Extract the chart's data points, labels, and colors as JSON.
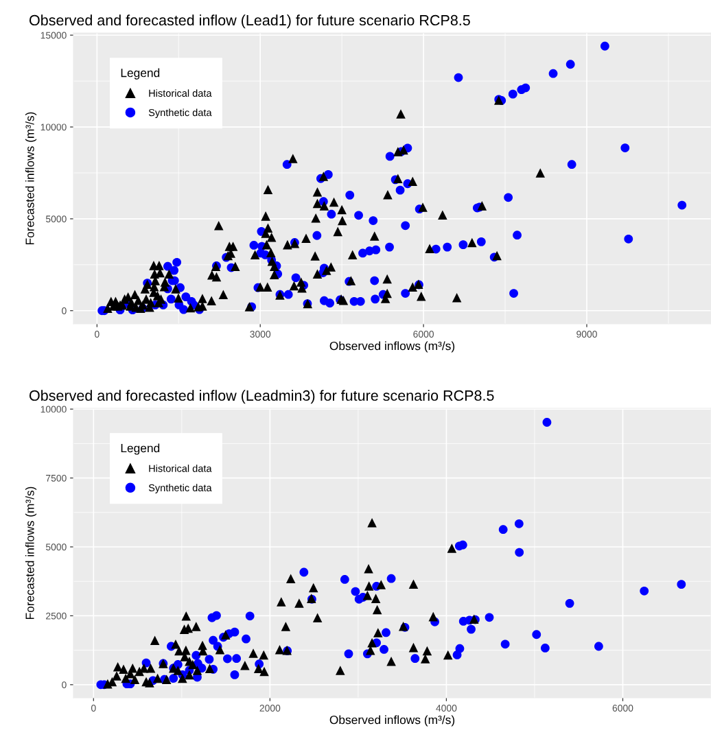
{
  "chart_data": [
    {
      "type": "scatter",
      "title": "Observed and forecasted inflow (Lead1) for future scenario RCP8.5",
      "xlabel": "Observed inflows (m³/s)",
      "ylabel": "Forecasted inflows (m³/s)",
      "legend_title": "Legend",
      "legend": "top left",
      "grid": true,
      "xlim": [
        -433,
        11283
      ],
      "ylim": [
        -720,
        15120
      ],
      "xticks": [
        0,
        3000,
        6000,
        9000
      ],
      "yticks": [
        0,
        5000,
        10000,
        15000
      ],
      "series": [
        {
          "name": "Historical data",
          "color": "#000000",
          "marker": "triangle",
          "x": [
            5583,
            5530,
            5633,
            3600,
            4162,
            3142,
            5530,
            4050,
            4050,
            4175,
            4354,
            4500,
            5342,
            4021,
            4508,
            4425,
            3100,
            3142,
            3100,
            3208,
            2237,
            3842,
            3500,
            3633,
            5100,
            3117,
            2433,
            2500,
            2458,
            2408,
            2904,
            3196,
            3217,
            3258,
            4008,
            4696,
            2183,
            2541,
            2112,
            2196,
            3258,
            4050,
            4217,
            4300,
            2321,
            2104,
            3000,
            3133,
            3621,
            3750,
            3767,
            4667,
            5333,
            5300,
            5333,
            3362,
            3871,
            4487,
            4529,
            2800,
            1717,
            1862,
            1937,
            1937,
            1496,
            1446,
            1325,
            1042,
            1142,
            1058,
            1158,
            1071,
            925,
            883,
            1237,
            1250,
            1050,
            1042,
            1112,
            1175,
            1133,
            196,
            300,
            342,
            425,
            508,
            571,
            633,
            696,
            758,
            842,
            904,
            967,
            800,
            258,
            612,
            717,
            987,
            467,
            383,
            5800,
            5987,
            6350,
            6113,
            6892,
            7075,
            8146,
            7383,
            7350,
            5800,
            5908,
            5958,
            6612
          ],
          "values": [
            10710,
            8660,
            8750,
            8280,
            7310,
            6590,
            7190,
            6460,
            5840,
            5710,
            5910,
            5500,
            6310,
            5040,
            4900,
            4310,
            5150,
            4500,
            4210,
            4000,
            4630,
            3940,
            3590,
            3660,
            4060,
            3590,
            3500,
            3500,
            3130,
            3000,
            3040,
            3160,
            2690,
            2410,
            2980,
            3040,
            2410,
            2410,
            1940,
            1840,
            1960,
            2000,
            2190,
            2380,
            880,
            540,
            1290,
            1290,
            1350,
            1560,
            1230,
            1630,
            1730,
            660,
            940,
            850,
            380,
            630,
            560,
            210,
            160,
            210,
            250,
            660,
            690,
            1190,
            2000,
            2460,
            2460,
            2000,
            2060,
            1630,
            1440,
            1190,
            1310,
            1560,
            1310,
            1000,
            810,
            630,
            440,
            130,
            250,
            500,
            310,
            630,
            750,
            440,
            880,
            560,
            310,
            630,
            190,
            130,
            500,
            250,
            190,
            440,
            310,
            250,
            7040,
            5630,
            5210,
            3380,
            3710,
            5710,
            7500,
            11460,
            3000,
            1290,
            1440,
            780,
            710
          ]
        },
        {
          "name": "Synthetic data",
          "color": "#0000ff",
          "marker": "circle",
          "x": [
            3492,
            4112,
            4250,
            4646,
            4162,
            4308,
            4808,
            5075,
            4042,
            5383,
            5483,
            5571,
            3021,
            2883,
            3008,
            3092,
            3029,
            3208,
            3300,
            3321,
            3633,
            4883,
            5008,
            5125,
            5375,
            5667,
            2375,
            2467,
            2196,
            2958,
            2842,
            3362,
            3517,
            3654,
            3800,
            4175,
            4154,
            3867,
            4175,
            4279,
            4467,
            4633,
            4725,
            4842,
            5100,
            5112,
            5258,
            5667,
            1467,
            1417,
            1300,
            1383,
            1425,
            1529,
            925,
            1300,
            1362,
            1508,
            1592,
            1633,
            1737,
            1883,
            1779,
            1071,
            1217,
            92,
            133,
            425,
            654,
            842,
            550,
            9333,
            8700,
            8383,
            6642,
            7383,
            7433,
            7642,
            7800,
            7875,
            5708,
            5592,
            5708,
            5925,
            9704,
            8725,
            7558,
            6987,
            7029,
            10750,
            7721,
            7062,
            6729,
            6437,
            6229,
            9767,
            7300,
            5917,
            7658
          ],
          "values": [
            7960,
            7190,
            7410,
            6290,
            5940,
            5250,
            5190,
            4900,
            4090,
            8400,
            7130,
            6560,
            4310,
            3560,
            3130,
            3040,
            3500,
            2750,
            2440,
            2000,
            3710,
            3130,
            3250,
            3310,
            3460,
            4630,
            2900,
            2340,
            2440,
            1250,
            210,
            880,
            880,
            1790,
            1380,
            2310,
            2060,
            380,
            540,
            410,
            590,
            1590,
            500,
            500,
            1630,
            630,
            880,
            940,
            2630,
            2190,
            2410,
            1630,
            1630,
            1250,
            1500,
            1190,
            630,
            310,
            60,
            750,
            500,
            60,
            310,
            310,
            310,
            0,
            0,
            40,
            40,
            130,
            380,
            14400,
            13410,
            12910,
            12690,
            11500,
            11440,
            11790,
            12030,
            12130,
            8850,
            8660,
            6910,
            5530,
            8860,
            7960,
            6160,
            5590,
            5630,
            5740,
            4110,
            3750,
            3590,
            3460,
            3350,
            3900,
            2910,
            1410,
            940
          ]
        }
      ]
    },
    {
      "type": "scatter",
      "title": "Observed and forecasted inflow (Leadmin3) for future scenario RCP8.5",
      "xlabel": "Observed inflows (m³/s)",
      "ylabel": "Forecasted inflows (m³/s)",
      "legend_title": "Legend",
      "legend": "top left",
      "grid": true,
      "xlim": [
        -228,
        6978
      ],
      "ylim": [
        -477,
        10030
      ],
      "xticks": [
        0,
        2000,
        4000,
        6000
      ],
      "yticks": [
        0,
        2500,
        5000,
        7500,
        10000
      ],
      "series": [
        {
          "name": "Historical data",
          "color": "#000000",
          "marker": "triangle",
          "x": [
            3157,
            3118,
            3123,
            3105,
            3200,
            3216,
            2236,
            2128,
            2493,
            2470,
            2331,
            2539,
            2179,
            2110,
            2193,
            2797,
            3157,
            3139,
            3225,
            1050,
            1029,
            1073,
            1163,
            695,
            931,
            969,
            1047,
            1235,
            1240,
            1433,
            1497,
            1811,
            1929,
            1716,
            1870,
            1935,
            1317,
            1176,
            1034,
            1086,
            1124,
            790,
            906,
            957,
            1086,
            1008,
            160,
            211,
            275,
            340,
            443,
            520,
            571,
            648,
            365,
            468,
            597,
            262,
            726,
            828,
            417,
            635,
            4062,
            3260,
            3627,
            3851,
            3512,
            4314,
            3375,
            3627,
            3782,
            3761,
            4018
          ],
          "values": [
            5880,
            4210,
            3580,
            3240,
            3130,
            2720,
            3850,
            3010,
            3520,
            3130,
            2960,
            2430,
            2110,
            1270,
            1250,
            520,
            1520,
            1250,
            1890,
            2490,
            2010,
            2050,
            2110,
            1610,
            1470,
            1230,
            1250,
            1430,
            1230,
            1270,
            1810,
            1140,
            1080,
            700,
            590,
            480,
            590,
            520,
            1020,
            850,
            730,
            770,
            600,
            520,
            360,
            230,
            30,
            110,
            650,
            560,
            600,
            480,
            600,
            600,
            230,
            190,
            110,
            320,
            230,
            190,
            400,
            70,
            4950,
            3630,
            3650,
            2470,
            2120,
            2380,
            850,
            1350,
            1230,
            940,
            1080
          ]
        },
        {
          "name": "Synthetic data",
          "color": "#0000ff",
          "marker": "circle",
          "x": [
            2385,
            2848,
            2969,
            3010,
            3054,
            3208,
            2475,
            2197,
            2892,
            3105,
            3208,
            1773,
            1343,
            1394,
            1600,
            1536,
            1472,
            1356,
            1407,
            1729,
            1518,
            1621,
            1600,
            1878,
            1312,
            1183,
            1227,
            1356,
            1176,
            880,
            790,
            906,
            957,
            1163,
            82,
            121,
            378,
            443,
            597,
            417,
            674,
            803,
            906,
            1008,
            1086,
            5140,
            4644,
            4824,
            4827,
            4147,
            4186,
            3375,
            6664,
            6243,
            5398,
            3869,
            3530,
            3316,
            4193,
            4262,
            4327,
            4487,
            4281,
            5022,
            4667,
            5120,
            5727,
            4152,
            4122,
            3293,
            3645
          ],
          "values": [
            4080,
            3820,
            3380,
            3100,
            3170,
            3570,
            3100,
            1230,
            1120,
            1120,
            1520,
            2490,
            2430,
            2510,
            1910,
            1850,
            1720,
            1610,
            1390,
            1660,
            940,
            950,
            360,
            750,
            920,
            770,
            600,
            560,
            270,
            1390,
            770,
            600,
            730,
            1060,
            0,
            0,
            30,
            null,
            790,
            30,
            150,
            190,
            230,
            360,
            520,
            9520,
            5630,
            5840,
            4800,
            5030,
            5070,
            3850,
            3640,
            3400,
            2950,
            2280,
            2080,
            1890,
            2300,
            2340,
            2360,
            2440,
            2010,
            1820,
            1470,
            1330,
            1390,
            1310,
            1080,
            1280,
            950
          ]
        }
      ]
    }
  ]
}
